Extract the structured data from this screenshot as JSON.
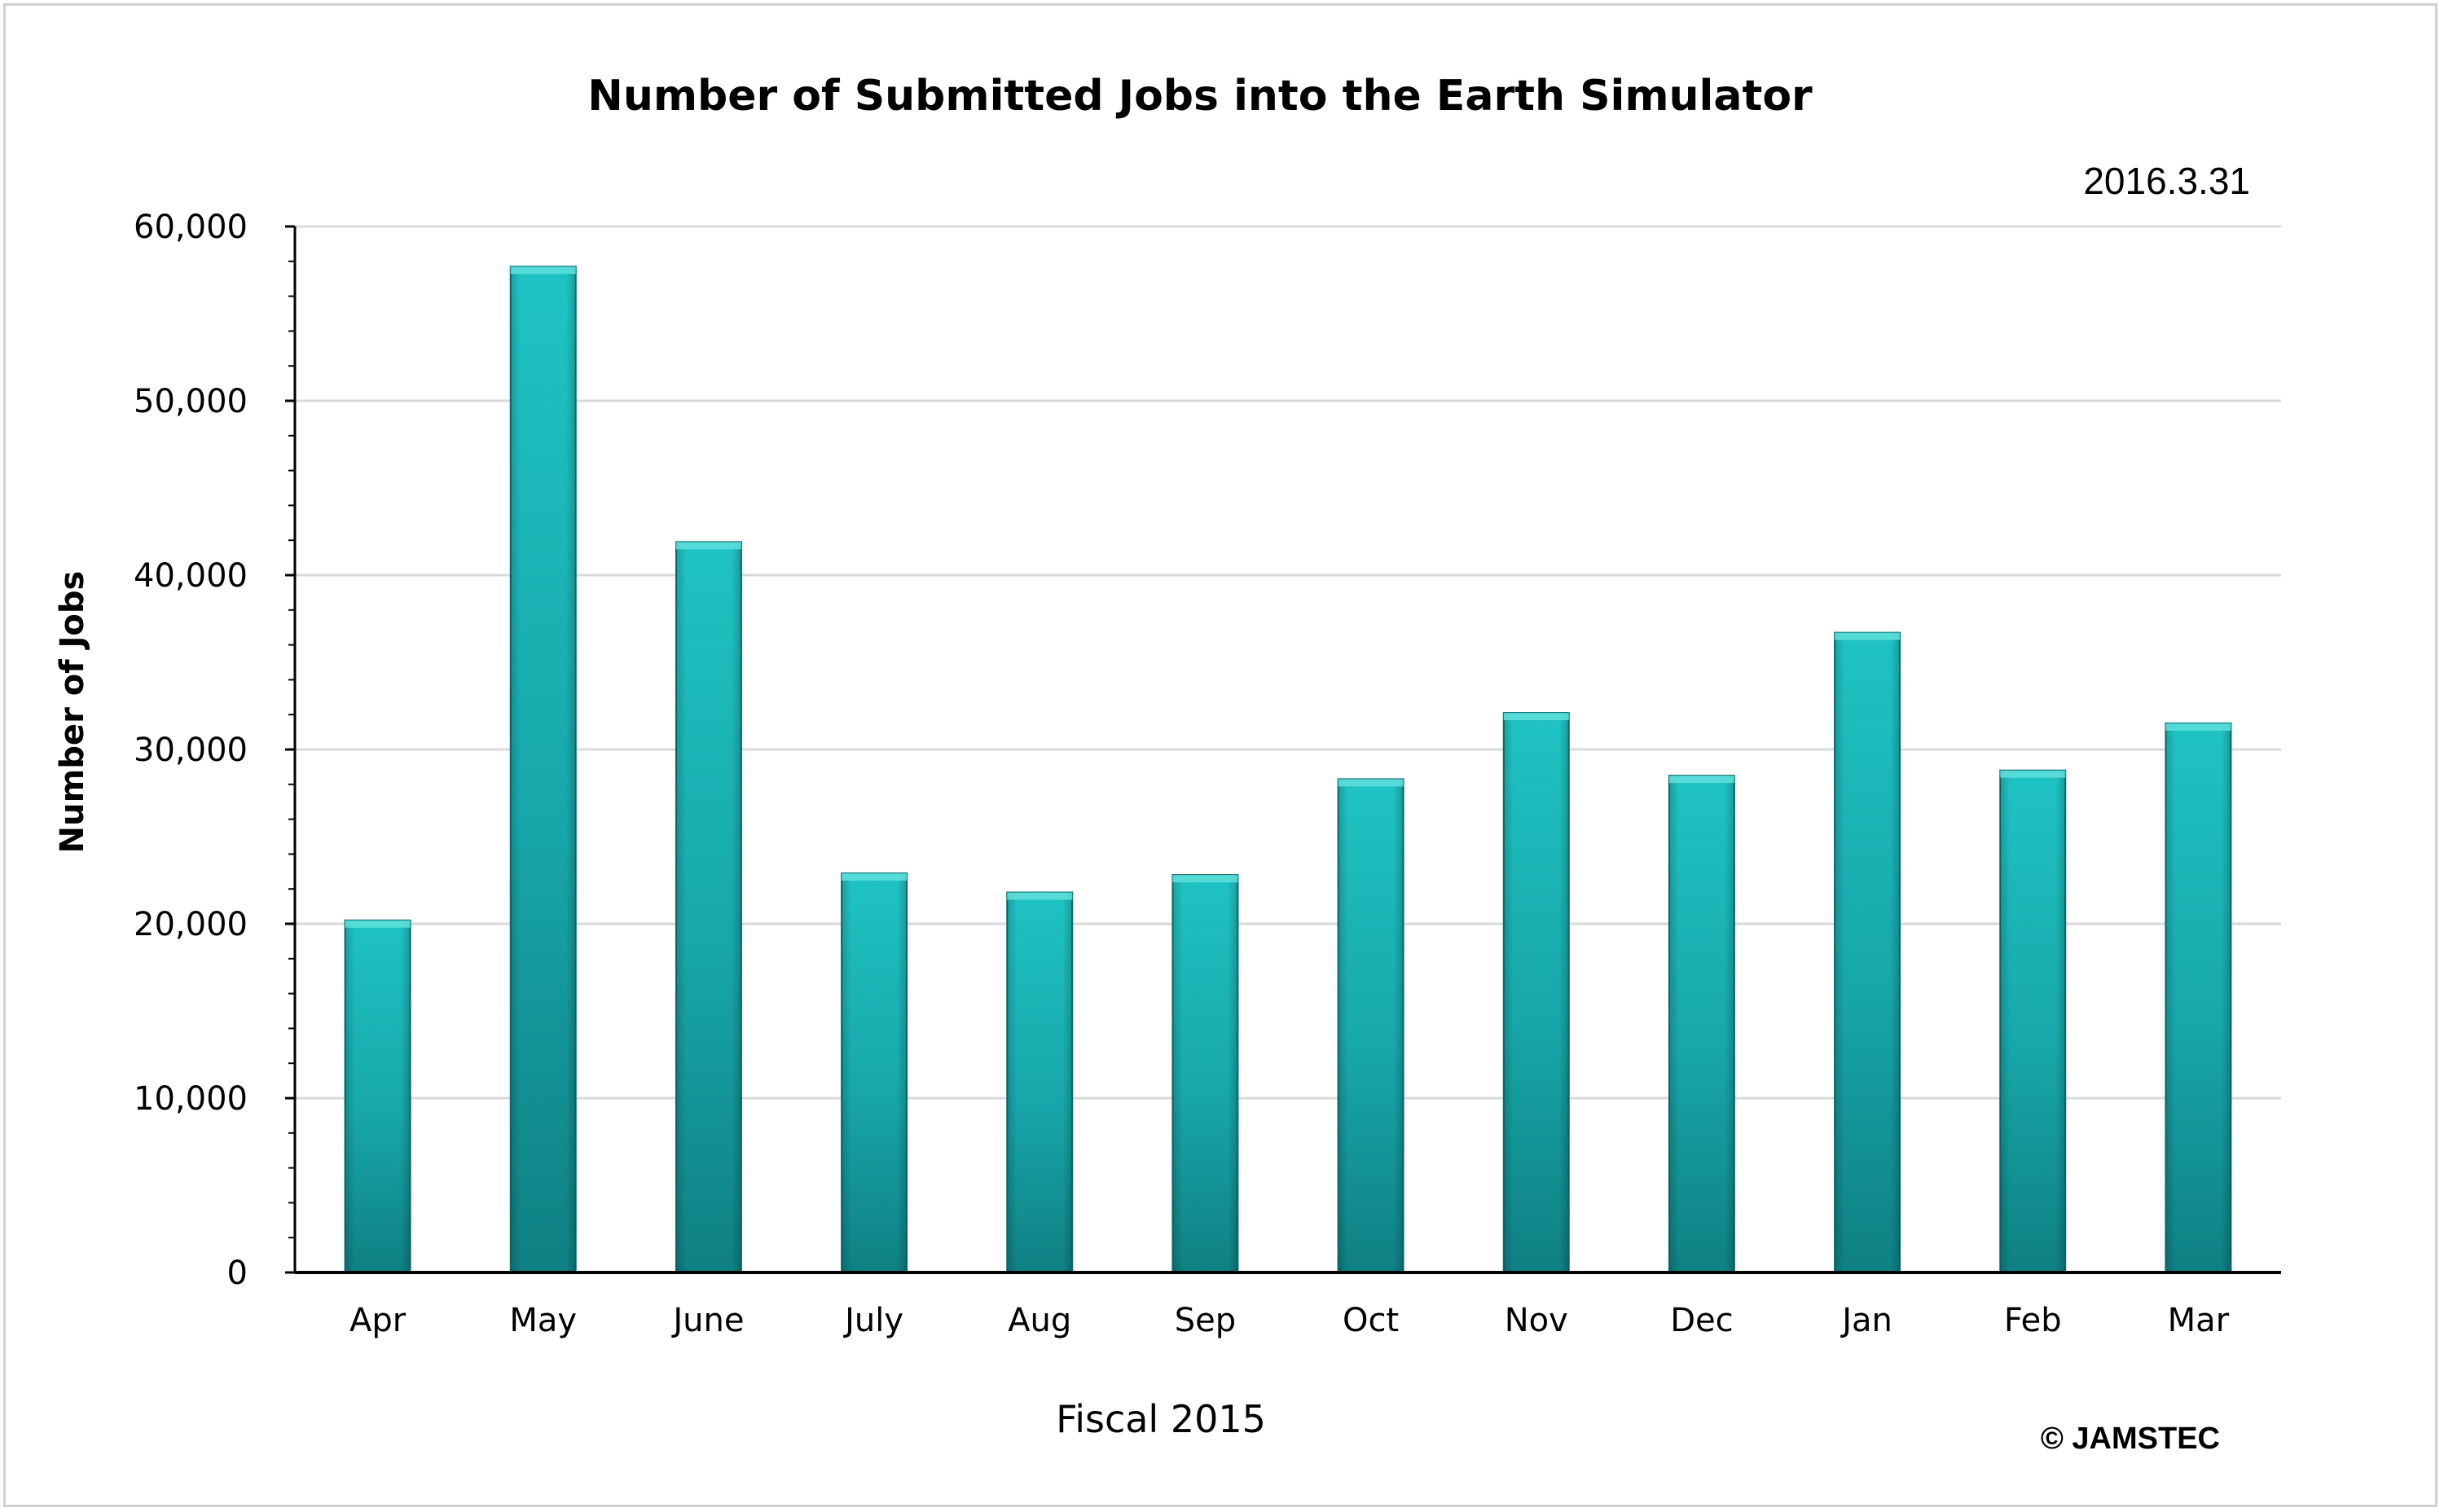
{
  "chart_data": {
    "type": "bar",
    "title": "Number of Submitted Jobs into the Earth Simulator",
    "date": "2016.3.31",
    "ylabel": "Number of Jobs",
    "xlabel": "Fiscal 2015",
    "copyright": "© JAMSTEC",
    "categories": [
      "Apr",
      "May",
      "June",
      "July",
      "Aug",
      "Sep",
      "Oct",
      "Nov",
      "Dec",
      "Jan",
      "Feb",
      "Mar"
    ],
    "values": [
      20200,
      57700,
      41900,
      22900,
      21800,
      22800,
      28300,
      32100,
      28500,
      36700,
      28800,
      31500
    ],
    "ylim": [
      0,
      60000
    ],
    "yticks": [
      0,
      10000,
      20000,
      30000,
      40000,
      50000,
      60000
    ],
    "ytick_labels": [
      "0",
      "10,000",
      "20,000",
      "30,000",
      "40,000",
      "50,000",
      "60,000"
    ],
    "grid": true,
    "legend": "none",
    "colors": {
      "bar_light": "#1fc3c3",
      "bar_mid": "#16a8ab",
      "bar_dark": "#0f7f82",
      "grid": "#d9d9d9",
      "axis": "#000000"
    }
  }
}
